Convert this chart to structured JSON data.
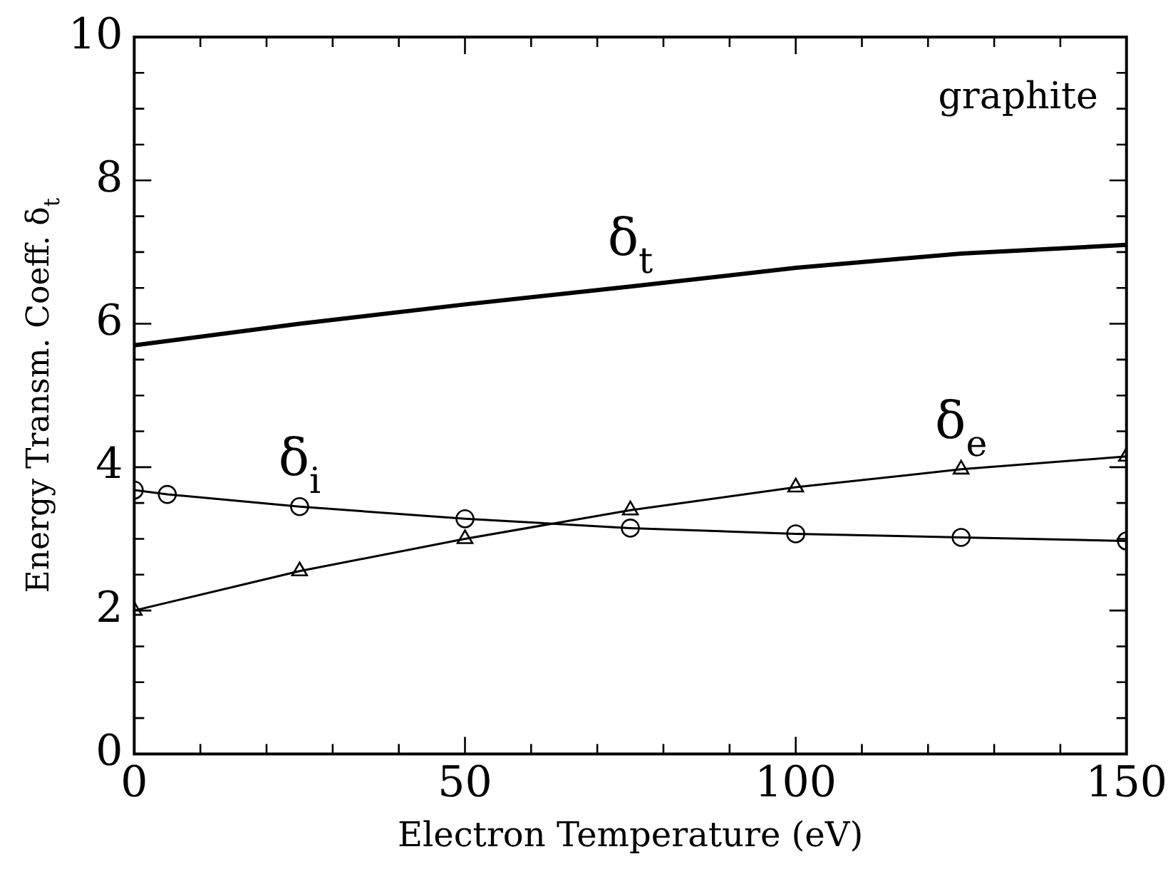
{
  "chart_data": {
    "type": "line",
    "xlabel": "Electron Temperature (eV)",
    "ylabel": "Energy Transm. Coeff. δ$_{t}$",
    "xlim": [
      0,
      150
    ],
    "ylim": [
      0,
      10
    ],
    "xticks": [
      0,
      {
        "value": 10,
        "label": null
      },
      {
        "value": 20,
        "label": null
      },
      {
        "value": 30,
        "label": null
      },
      {
        "value": 40,
        "label": null
      },
      50,
      {
        "value": 60,
        "label": null
      },
      {
        "value": 70,
        "label": null
      },
      {
        "value": 80,
        "label": null
      },
      {
        "value": 90,
        "label": null
      },
      100,
      {
        "value": 110,
        "label": null
      },
      {
        "value": 120,
        "label": null
      },
      {
        "value": 130,
        "label": null
      },
      {
        "value": 140,
        "label": null
      },
      150
    ],
    "yticks": [
      0,
      {
        "value": 0.5,
        "label": null
      },
      {
        "value": 1,
        "label": null
      },
      {
        "value": 1.5,
        "label": null
      },
      2,
      {
        "value": 2.5,
        "label": null
      },
      {
        "value": 3,
        "label": null
      },
      {
        "value": 3.5,
        "label": null
      },
      4,
      {
        "value": 4.5,
        "label": null
      },
      {
        "value": 5,
        "label": null
      },
      {
        "value": 5.5,
        "label": null
      },
      6,
      {
        "value": 6.5,
        "label": null
      },
      {
        "value": 7,
        "label": null
      },
      {
        "value": 7.5,
        "label": null
      },
      8,
      {
        "value": 8.5,
        "label": null
      },
      {
        "value": 9,
        "label": null
      },
      {
        "value": 9.5,
        "label": null
      },
      10
    ],
    "series": [
      {
        "name": "δ$_{t}$",
        "color": "#000000",
        "marker": "none",
        "x": [
          0,
          25,
          50,
          75,
          100,
          125,
          150
        ],
        "values": [
          5.7,
          6.0,
          6.27,
          6.52,
          6.78,
          6.98,
          7.1
        ]
      },
      {
        "name": "δ$_{e}$",
        "color": "#000000",
        "marker": "triangle",
        "x": [
          0,
          25,
          50,
          75,
          100,
          125,
          150
        ],
        "values": [
          2.0,
          2.55,
          3.0,
          3.4,
          3.72,
          3.97,
          4.15
        ]
      },
      {
        "name": "δ$_{i}$",
        "color": "#000000",
        "marker": "circle",
        "x": [
          0,
          5,
          25,
          50,
          75,
          100,
          125,
          150
        ],
        "values": [
          3.68,
          3.62,
          3.45,
          3.28,
          3.15,
          3.07,
          3.02,
          2.97
        ]
      }
    ],
    "annotations": [
      "graphite"
    ]
  }
}
